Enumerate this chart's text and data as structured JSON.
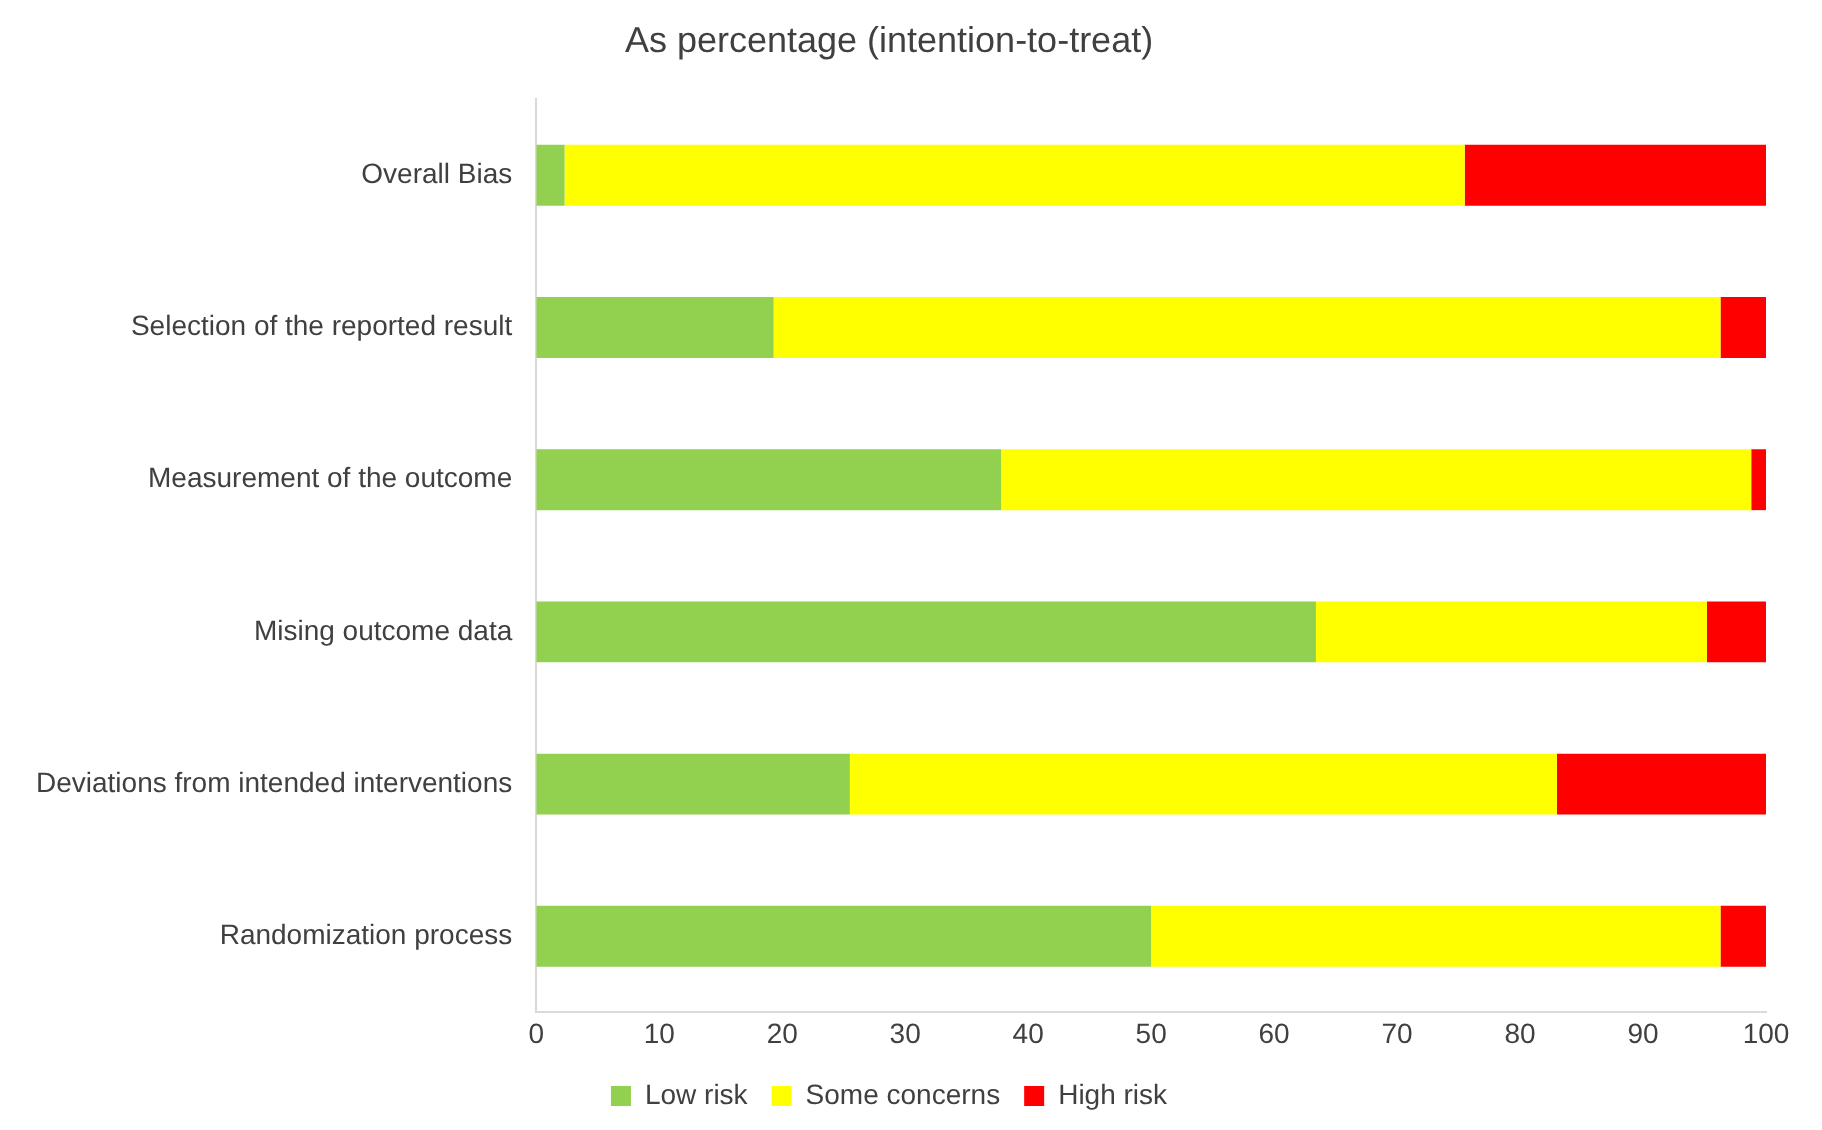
{
  "chart_data": {
    "type": "bar",
    "title": "As percentage (intention-to-treat)",
    "orientation": "horizontal",
    "stacked": true,
    "categories": [
      "Overall Bias",
      "Selection of the reported result",
      "Measurement of the outcome",
      "Mising outcome data",
      "Deviations from intended interventions",
      "Randomization process"
    ],
    "series": [
      {
        "name": "Low risk",
        "color": "#92d050",
        "values": [
          2.3,
          19.3,
          37.8,
          63.4,
          25.5,
          50
        ]
      },
      {
        "name": "Some concerns",
        "color": "#ffff00",
        "values": [
          73.2,
          77,
          61,
          31.8,
          57.5,
          46.3
        ]
      },
      {
        "name": "High risk",
        "color": "#ff0000",
        "values": [
          24.5,
          3.7,
          1.2,
          4.8,
          17,
          3.7
        ]
      }
    ],
    "xlim": [
      0,
      100
    ],
    "xticks": [
      0,
      10,
      20,
      30,
      40,
      50,
      60,
      70,
      80,
      90,
      100
    ],
    "grid": false,
    "legend": "bottom"
  }
}
